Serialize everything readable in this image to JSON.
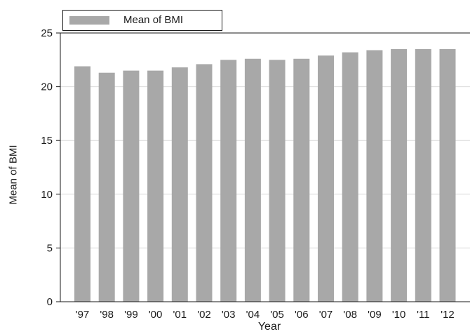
{
  "chart_data": {
    "type": "bar",
    "categories": [
      "'97",
      "'98",
      "'99",
      "'00",
      "'01",
      "'02",
      "'03",
      "'04",
      "'05",
      "'06",
      "'07",
      "'08",
      "'09",
      "'10",
      "'11",
      "'12"
    ],
    "series": [
      {
        "name": "Mean of BMI",
        "values": [
          21.9,
          21.3,
          21.5,
          21.5,
          21.8,
          22.1,
          22.5,
          22.6,
          22.5,
          22.6,
          22.9,
          23.2,
          23.4,
          23.5,
          23.5,
          23.5
        ]
      }
    ],
    "xlabel": "Year",
    "ylabel": "Mean of BMI",
    "ylim": [
      0,
      25
    ],
    "yticks": [
      0,
      5,
      10,
      15,
      20,
      25
    ],
    "grid": true,
    "legend": "top-left",
    "bar_color": "#a8a8a8",
    "grid_color": "#d9d9d9"
  }
}
